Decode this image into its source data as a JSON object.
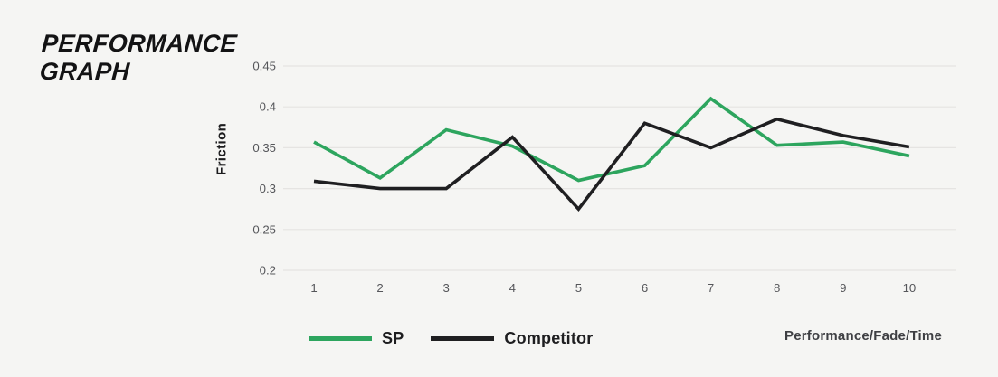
{
  "title": {
    "line1": "PERFORMANCE",
    "line2": "GRAPH"
  },
  "chart_data": {
    "type": "line",
    "title": "Performance Graph",
    "x": [
      1,
      2,
      3,
      4,
      5,
      6,
      7,
      8,
      9,
      10
    ],
    "series": [
      {
        "name": "SP",
        "color": "#2da55e",
        "values": [
          0.357,
          0.313,
          0.372,
          0.352,
          0.31,
          0.328,
          0.41,
          0.353,
          0.357,
          0.34
        ]
      },
      {
        "name": "Competitor",
        "color": "#1f1f21",
        "values": [
          0.309,
          0.3,
          0.3,
          0.363,
          0.275,
          0.38,
          0.35,
          0.385,
          0.365,
          0.351
        ]
      }
    ],
    "xlabel": "Performance/Fade/Time",
    "ylabel": "Friction",
    "ylim": [
      0.2,
      0.45
    ],
    "y_ticks": [
      0.45,
      0.4,
      0.35,
      0.3,
      0.25,
      0.2
    ],
    "y_tick_labels": [
      "0.45",
      "0.4",
      "0.35",
      "0.3",
      "0.25",
      "0.2"
    ],
    "grid": true,
    "legend_position": "bottom-left"
  },
  "colors": {
    "background": "#f5f5f3",
    "gridline": "#e5e4e2",
    "tick_text": "#55565a"
  }
}
